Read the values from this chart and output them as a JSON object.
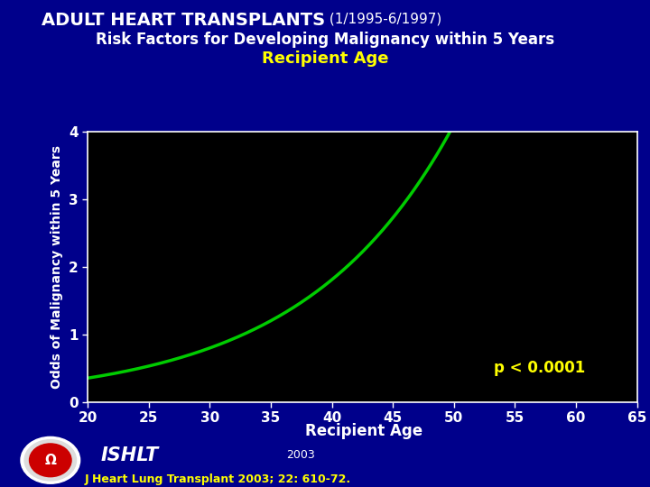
{
  "title_main": "ADULT HEART TRANSPLANTS",
  "title_sub1": " (1/1995-6/1997)",
  "title_line2": "Risk Factors for Developing Malignancy within 5 Years",
  "title_line3": "Recipient Age",
  "xlabel": "Recipient Age",
  "ylabel": "Odds of Malignancy within 5 Years",
  "xlim": [
    20,
    65
  ],
  "ylim": [
    0,
    4
  ],
  "xticks": [
    20,
    25,
    30,
    35,
    40,
    45,
    50,
    55,
    60,
    65
  ],
  "yticks": [
    0,
    1,
    2,
    3,
    4
  ],
  "pvalue_text": "p < 0.0001",
  "pvalue_x": 57,
  "pvalue_y": 0.5,
  "line_color": "#00CC00",
  "background_color": "#00008B",
  "plot_bg_color": "#000000",
  "title_color": "#FFFFFF",
  "subtitle_color": "#FFFF00",
  "tick_label_color": "#FFFFFF",
  "axis_label_color": "#FFFFFF",
  "pvalue_color": "#FFFF00",
  "footer_ishlt": "ISHLT",
  "footer_year": "2003",
  "footer_journal": "J Heart Lung Transplant 2003; 22: 610-72.",
  "curve_a": 0.068,
  "curve_b": 0.082,
  "curve_x_start": 20,
  "curve_x_end": 65
}
